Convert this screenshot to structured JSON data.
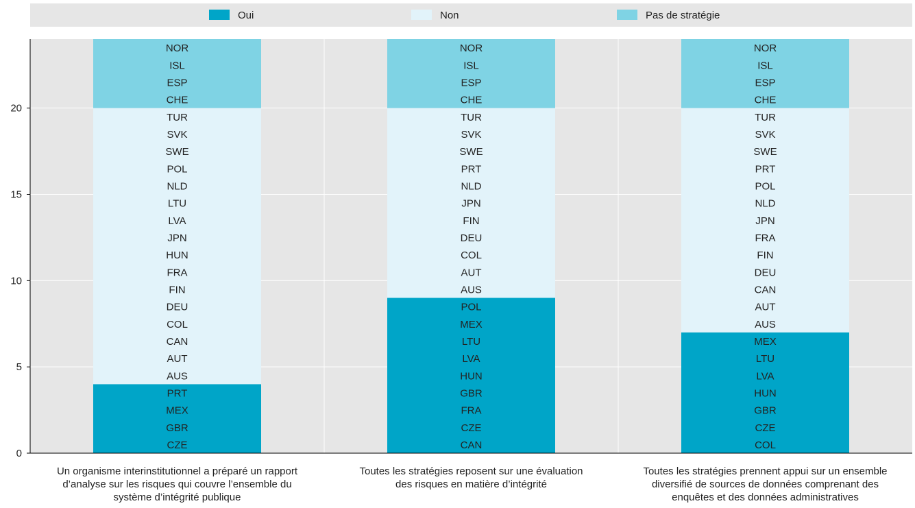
{
  "chart_data": {
    "type": "bar",
    "stacked": true,
    "title": "",
    "xlabel": "",
    "ylabel": "",
    "ylim": [
      0,
      24
    ],
    "yticks": [
      0,
      5,
      10,
      15,
      20
    ],
    "grid": true,
    "legend_placement": "top",
    "legend": [
      {
        "name": "Oui",
        "color": "#00A5C8"
      },
      {
        "name": "Non",
        "color": "#E2F3FA"
      },
      {
        "name": "Pas de stratégie",
        "color": "#7FD3E4"
      }
    ],
    "categories": [
      {
        "lines": [
          "Un organisme interinstitutionnel a préparé un rapport",
          "d’analyse sur les risques qui couvre l’ensemble du",
          "système d’intégrité publique"
        ],
        "oui": [
          "CZE",
          "GBR",
          "MEX",
          "PRT"
        ],
        "non": [
          "AUS",
          "AUT",
          "CAN",
          "COL",
          "DEU",
          "FIN",
          "FRA",
          "HUN",
          "JPN",
          "LVA",
          "LTU",
          "NLD",
          "POL",
          "SWE",
          "SVK",
          "TUR"
        ],
        "pas": [
          "CHE",
          "ESP",
          "ISL",
          "NOR"
        ]
      },
      {
        "lines": [
          "Toutes les stratégies reposent sur une évaluation",
          "des risques en matière d’intégrité"
        ],
        "oui": [
          "CAN",
          "CZE",
          "FRA",
          "GBR",
          "HUN",
          "LVA",
          "LTU",
          "MEX",
          "POL"
        ],
        "non": [
          "AUS",
          "AUT",
          "COL",
          "DEU",
          "FIN",
          "JPN",
          "NLD",
          "PRT",
          "SWE",
          "SVK",
          "TUR"
        ],
        "pas": [
          "CHE",
          "ESP",
          "ISL",
          "NOR"
        ]
      },
      {
        "lines": [
          "Toutes les stratégies prennent appui sur un ensemble",
          "diversifié de sources de données comprenant des",
          "enquêtes et des données administratives"
        ],
        "oui": [
          "COL",
          "CZE",
          "GBR",
          "HUN",
          "LVA",
          "LTU",
          "MEX"
        ],
        "non": [
          "AUS",
          "AUT",
          "CAN",
          "DEU",
          "FIN",
          "FRA",
          "JPN",
          "NLD",
          "POL",
          "PRT",
          "SWE",
          "SVK",
          "TUR"
        ],
        "pas": [
          "CHE",
          "ESP",
          "ISL",
          "NOR"
        ]
      }
    ]
  }
}
